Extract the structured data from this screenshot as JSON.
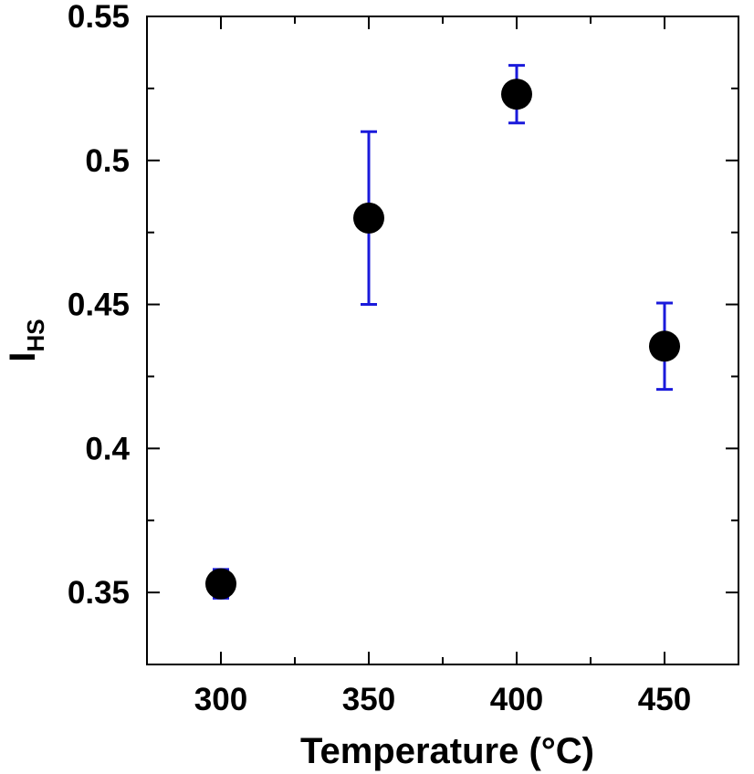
{
  "chart_data": {
    "type": "scatter",
    "title": "",
    "xlabel": "Temperature (°C)",
    "ylabel": {
      "main": "I",
      "sub": "HS"
    },
    "xlim": [
      275,
      475
    ],
    "ylim": [
      0.325,
      0.55
    ],
    "x_ticks_major": [
      300,
      350,
      400,
      450
    ],
    "x_ticks_minor": [
      325,
      375,
      425
    ],
    "y_ticks_major": [
      0.35,
      0.4,
      0.45,
      0.5,
      0.55
    ],
    "y_ticks_minor": [
      0.325,
      0.375,
      0.425,
      0.475,
      0.525
    ],
    "x_tick_labels": [
      "300",
      "350",
      "400",
      "450"
    ],
    "y_tick_labels": [
      "0.35",
      "0.4",
      "0.45",
      "0.5",
      "0.55"
    ],
    "grid": false,
    "legend": "none",
    "marker_color": "#000000",
    "errorbar_color": "#1a1adb",
    "points": [
      {
        "x": 300,
        "y": 0.353,
        "err_low": 0.348,
        "err_high": 0.358
      },
      {
        "x": 350,
        "y": 0.48,
        "err_low": 0.45,
        "err_high": 0.51
      },
      {
        "x": 400,
        "y": 0.523,
        "err_low": 0.513,
        "err_high": 0.533
      },
      {
        "x": 450,
        "y": 0.4355,
        "err_low": 0.4205,
        "err_high": 0.4505
      }
    ]
  }
}
